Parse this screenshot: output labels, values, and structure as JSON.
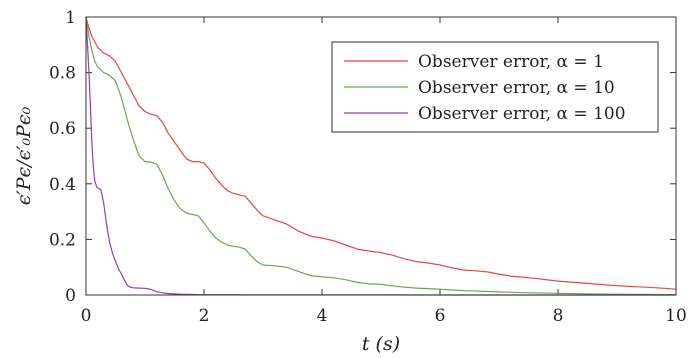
{
  "chart_data": {
    "type": "line",
    "title": "",
    "xlabel": "t (s)",
    "ylabel": "ϵ′Pϵ/ϵ′₀Pϵ₀",
    "xlim": [
      0,
      10
    ],
    "ylim": [
      0,
      1
    ],
    "xticks": [
      0,
      2,
      4,
      6,
      8,
      10
    ],
    "yticks": [
      0,
      0.2,
      0.4,
      0.6,
      0.8,
      1
    ],
    "xtick_labels": [
      "0",
      "2",
      "4",
      "6",
      "8",
      "10"
    ],
    "ytick_labels": [
      "0",
      "0.2",
      "0.4",
      "0.6",
      "0.8",
      "1"
    ],
    "grid": false,
    "legend_position": "top-right",
    "series": [
      {
        "name": "Observer error, α = 1",
        "color": "#e8453c",
        "x": [
          0,
          0.05,
          0.1,
          0.2,
          0.3,
          0.4,
          0.5,
          0.6,
          0.7,
          0.8,
          0.9,
          1.0,
          1.1,
          1.2,
          1.3,
          1.4,
          1.5,
          1.6,
          1.7,
          1.8,
          1.9,
          2.0,
          2.1,
          2.2,
          2.3,
          2.4,
          2.5,
          2.6,
          2.7,
          2.8,
          2.9,
          3.0,
          3.2,
          3.4,
          3.6,
          3.8,
          4.0,
          4.2,
          4.4,
          4.6,
          4.8,
          5.0,
          5.2,
          5.4,
          5.6,
          5.8,
          6.0,
          6.2,
          6.4,
          6.6,
          6.8,
          7.0,
          7.2,
          7.4,
          7.6,
          7.8,
          8.0,
          8.3,
          8.6,
          8.9,
          9.2,
          9.5,
          9.8,
          10.0
        ],
        "y": [
          1.0,
          0.96,
          0.93,
          0.89,
          0.87,
          0.86,
          0.84,
          0.8,
          0.76,
          0.72,
          0.68,
          0.66,
          0.65,
          0.645,
          0.62,
          0.58,
          0.55,
          0.52,
          0.49,
          0.48,
          0.48,
          0.475,
          0.45,
          0.42,
          0.395,
          0.375,
          0.365,
          0.36,
          0.355,
          0.33,
          0.305,
          0.285,
          0.27,
          0.255,
          0.23,
          0.212,
          0.205,
          0.195,
          0.18,
          0.165,
          0.158,
          0.152,
          0.143,
          0.13,
          0.12,
          0.115,
          0.108,
          0.098,
          0.09,
          0.087,
          0.083,
          0.075,
          0.068,
          0.064,
          0.06,
          0.055,
          0.05,
          0.045,
          0.04,
          0.035,
          0.031,
          0.028,
          0.024,
          0.021
        ]
      },
      {
        "name": "Observer error, α = 10",
        "color": "#6aa84f",
        "x": [
          0,
          0.05,
          0.1,
          0.15,
          0.2,
          0.3,
          0.4,
          0.5,
          0.6,
          0.7,
          0.8,
          0.9,
          1.0,
          1.1,
          1.2,
          1.3,
          1.4,
          1.5,
          1.6,
          1.7,
          1.8,
          1.9,
          2.0,
          2.1,
          2.2,
          2.3,
          2.4,
          2.5,
          2.6,
          2.7,
          2.8,
          2.9,
          3.0,
          3.2,
          3.4,
          3.6,
          3.8,
          4.0,
          4.2,
          4.4,
          4.6,
          4.8,
          5.0,
          5.3,
          5.6,
          5.9,
          6.2,
          6.5,
          7.0,
          7.5,
          8.0,
          8.5,
          9.0,
          9.5,
          10.0
        ],
        "y": [
          1.0,
          0.93,
          0.88,
          0.84,
          0.82,
          0.8,
          0.79,
          0.77,
          0.71,
          0.63,
          0.56,
          0.5,
          0.48,
          0.478,
          0.47,
          0.43,
          0.38,
          0.34,
          0.31,
          0.295,
          0.29,
          0.285,
          0.26,
          0.23,
          0.205,
          0.19,
          0.18,
          0.175,
          0.172,
          0.165,
          0.14,
          0.12,
          0.108,
          0.105,
          0.1,
          0.085,
          0.07,
          0.065,
          0.062,
          0.055,
          0.045,
          0.04,
          0.038,
          0.03,
          0.025,
          0.022,
          0.018,
          0.015,
          0.011,
          0.008,
          0.006,
          0.004,
          0.003,
          0.002,
          0.001
        ]
      },
      {
        "name": "Observer error, α = 100",
        "color": "#8e3fb5",
        "x": [
          0,
          0.02,
          0.05,
          0.08,
          0.1,
          0.12,
          0.15,
          0.18,
          0.2,
          0.25,
          0.3,
          0.35,
          0.4,
          0.45,
          0.5,
          0.55,
          0.6,
          0.65,
          0.7,
          0.75,
          0.8,
          0.9,
          1.0,
          1.1,
          1.2,
          1.3,
          1.4,
          1.5,
          1.6,
          1.7,
          2.0,
          2.5,
          3.0,
          4.0,
          5.0,
          6.0,
          7.0,
          8.0,
          9.0,
          10.0
        ],
        "y": [
          1.0,
          0.92,
          0.8,
          0.65,
          0.55,
          0.47,
          0.41,
          0.39,
          0.385,
          0.38,
          0.33,
          0.25,
          0.19,
          0.15,
          0.12,
          0.095,
          0.075,
          0.055,
          0.035,
          0.028,
          0.026,
          0.025,
          0.024,
          0.02,
          0.012,
          0.008,
          0.005,
          0.004,
          0.003,
          0.002,
          0.001,
          0.001,
          0.0005,
          0.0003,
          0.0002,
          0.0001,
          0.0001,
          0.0,
          0.0,
          0.0
        ]
      }
    ]
  }
}
